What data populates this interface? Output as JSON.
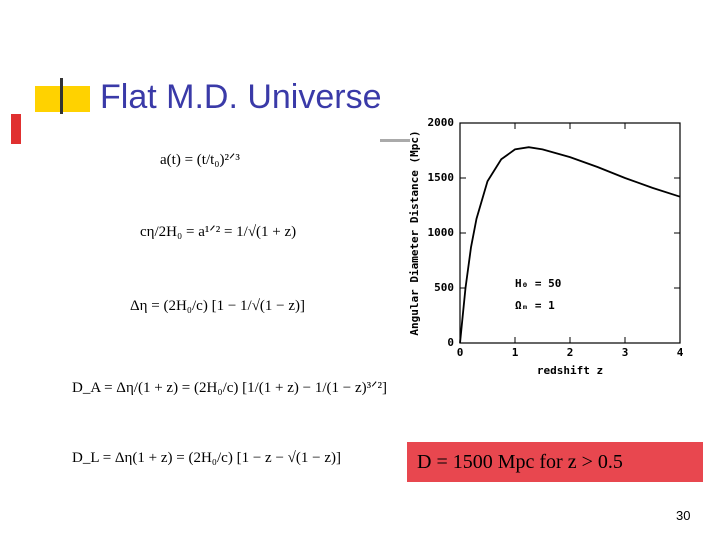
{
  "slide": {
    "title": "Flat M.D. Universe",
    "equations": [
      "a(t) = (t/t₀)²ᐟ³",
      "cη/2H₀ = a¹ᐟ² = 1/√(1 + z)",
      "Δη = (2H₀/c) [1 − 1/√(1 − z)]",
      "D_A = Δη/(1 + z) = (2H₀/c) [1/(1 + z) − 1/(1 − z)³ᐟ²]",
      "D_L = Δη(1 + z) = (2H₀/c) [1 − z − √(1 − z)]"
    ],
    "note": "D = 1500 Mpc for z > 0.5",
    "page_number": "30"
  },
  "chart_data": {
    "type": "line",
    "x_label": "redshift z",
    "y_label": "Angular Diameter Distance (Mpc)",
    "annotations": [
      "H₀ = 50",
      "Ωₘ = 1"
    ],
    "x": [
      0,
      0.1,
      0.2,
      0.3,
      0.5,
      0.75,
      1,
      1.25,
      1.5,
      2,
      2.5,
      3,
      3.5,
      4
    ],
    "series": [
      {
        "color": "#000000",
        "values": [
          0,
          500,
          870,
          1130,
          1470,
          1670,
          1760,
          1780,
          1760,
          1690,
          1600,
          1500,
          1410,
          1330
        ]
      }
    ],
    "xlim": [
      0,
      4
    ],
    "xticks": [
      0,
      1,
      2,
      3,
      4
    ],
    "ylim": [
      0,
      2000
    ],
    "yticks": [
      0,
      500,
      1000,
      1500,
      2000
    ]
  }
}
